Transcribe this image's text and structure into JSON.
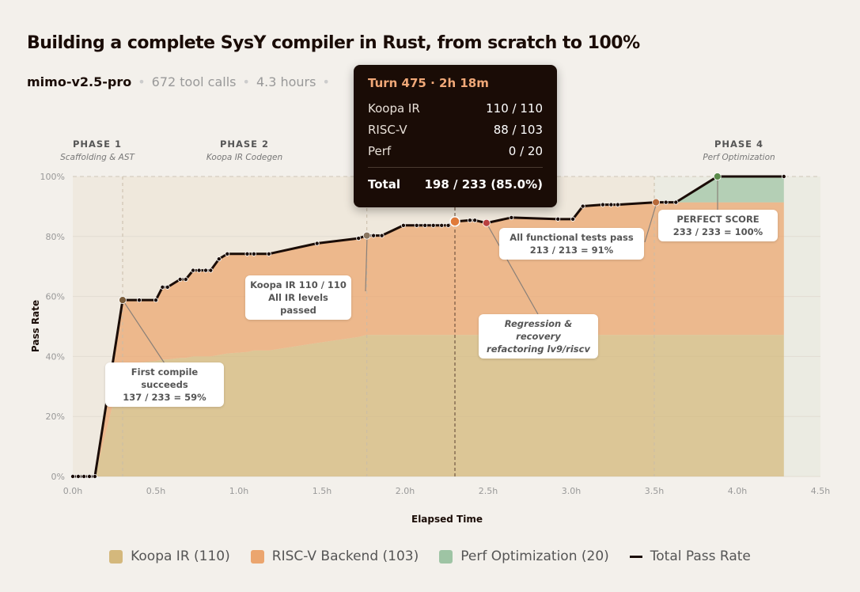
{
  "header": {
    "title": "Building a complete SysY compiler in Rust, from scratch to 100%",
    "model": "mimo-v2.5-pro",
    "tool_calls": "672 tool calls",
    "duration": "4.3 hours"
  },
  "phases": [
    {
      "label": "PHASE 1",
      "subtitle": "Scaffolding & AST"
    },
    {
      "label": "PHASE 2",
      "subtitle": "Koopa IR Codegen"
    },
    {
      "label": "PHASE 4",
      "subtitle": "Perf Optimization"
    }
  ],
  "tooltip": {
    "title": "Turn 475 · 2h 18m",
    "rows": [
      {
        "label": "Koopa IR",
        "value": "110 / 110"
      },
      {
        "label": "RISC-V",
        "value": "88 / 103"
      },
      {
        "label": "Perf",
        "value": "0 / 20"
      }
    ],
    "total_label": "Total",
    "total_value": "198 / 233 (85.0%)"
  },
  "annotations": [
    {
      "line1": "First compile succeeds",
      "line2": "137 / 233 = 59%"
    },
    {
      "line1": "Koopa IR 110 / 110",
      "line2": "All IR levels passed"
    },
    {
      "line1": "Regression & recovery",
      "line2": "refactoring lv9/riscv"
    },
    {
      "line1": "All functional tests pass",
      "line2": "213 / 213 = 91%"
    },
    {
      "line1": "PERFECT SCORE",
      "line2": "233 / 233 = 100%"
    }
  ],
  "legend": [
    {
      "label": "Koopa IR (110)",
      "color": "#d4b87c"
    },
    {
      "label": "RISC-V Backend (103)",
      "color": "#eba56e"
    },
    {
      "label": "Perf Optimization (20)",
      "color": "#9ec4a4"
    },
    {
      "label": "Total Pass Rate",
      "color": "#1a0c06"
    }
  ],
  "chart_data": {
    "type": "area",
    "title": "Building a complete SysY compiler in Rust, from scratch to 100%",
    "xlabel": "Elapsed Time",
    "ylabel": "Pass Rate",
    "xlim": [
      0,
      4.5
    ],
    "ylim": [
      0,
      100
    ],
    "xticks": [
      "0.0h",
      "0.5h",
      "1.0h",
      "1.5h",
      "2.0h",
      "2.5h",
      "3.0h",
      "3.5h",
      "4.0h",
      "4.5h"
    ],
    "yticks": [
      "0%",
      "20%",
      "40%",
      "60%",
      "80%",
      "100%"
    ],
    "phase_boundaries_h": [
      0.3,
      1.77,
      3.5
    ],
    "hover_x": 2.3,
    "x": [
      0,
      0.033,
      0.067,
      0.1,
      0.133,
      0.3,
      0.4,
      0.5,
      0.54,
      0.57,
      0.646,
      0.68,
      0.724,
      0.76,
      0.8,
      0.83,
      0.88,
      0.93,
      1.05,
      1.09,
      1.18,
      1.47,
      1.72,
      1.77,
      1.81,
      1.86,
      1.99,
      2.07,
      2.12,
      2.17,
      2.22,
      2.26,
      2.3,
      2.39,
      2.42,
      2.49,
      2.64,
      2.92,
      3.01,
      3.07,
      3.19,
      3.24,
      3.28,
      3.51,
      3.57,
      3.63,
      3.88,
      4.28
    ],
    "series": [
      {
        "name": "Total Pass Rate",
        "values": [
          0,
          0,
          0,
          0,
          0,
          58.8,
          58.8,
          58.8,
          63.1,
          63.1,
          65.7,
          65.7,
          68.7,
          68.7,
          68.7,
          68.7,
          72.5,
          74.2,
          74.2,
          74.2,
          74.2,
          77.7,
          79.4,
          80.3,
          80.3,
          80.3,
          83.7,
          83.7,
          83.7,
          83.7,
          83.7,
          83.7,
          85.0,
          85.4,
          85.4,
          84.5,
          86.3,
          85.8,
          85.8,
          90.1,
          90.6,
          90.6,
          90.6,
          91.4,
          91.4,
          91.4,
          100,
          100
        ]
      },
      {
        "name": "Koopa IR (110)",
        "values": [
          0,
          0,
          0,
          0,
          0,
          37,
          38,
          38.5,
          39,
          39,
          39.5,
          39.5,
          40,
          40,
          40,
          40,
          40.5,
          41,
          41.5,
          42,
          42,
          44.5,
          46.5,
          47.2,
          47.2,
          47.2,
          47.2,
          47.2,
          47.2,
          47.2,
          47.2,
          47.2,
          47.2,
          47.2,
          47.2,
          47.2,
          47.2,
          47.2,
          47.2,
          47.2,
          47.2,
          47.2,
          47.2,
          47.2,
          47.2,
          47.2,
          47.2,
          47.2
        ]
      },
      {
        "name": "Perf Optimization (20)",
        "values": [
          0,
          0,
          0,
          0,
          0,
          0,
          0,
          0,
          0,
          0,
          0,
          0,
          0,
          0,
          0,
          0,
          0,
          0,
          0,
          0,
          0,
          0,
          0,
          0,
          0,
          0,
          0,
          0,
          0,
          0,
          0,
          0,
          0,
          0,
          0,
          0,
          0,
          0,
          0,
          0,
          0,
          0,
          0,
          0,
          0,
          0,
          8.6,
          8.6
        ]
      }
    ],
    "highlights": [
      {
        "x": 0.3,
        "color": "#7a5c3a"
      },
      {
        "x": 1.77,
        "color": "#8a7660"
      },
      {
        "x": 2.3,
        "color": "#e07a3a"
      },
      {
        "x": 2.49,
        "color": "#b84040"
      },
      {
        "x": 3.51,
        "color": "#b86a3a"
      },
      {
        "x": 3.88,
        "color": "#5a8a4a"
      }
    ]
  }
}
